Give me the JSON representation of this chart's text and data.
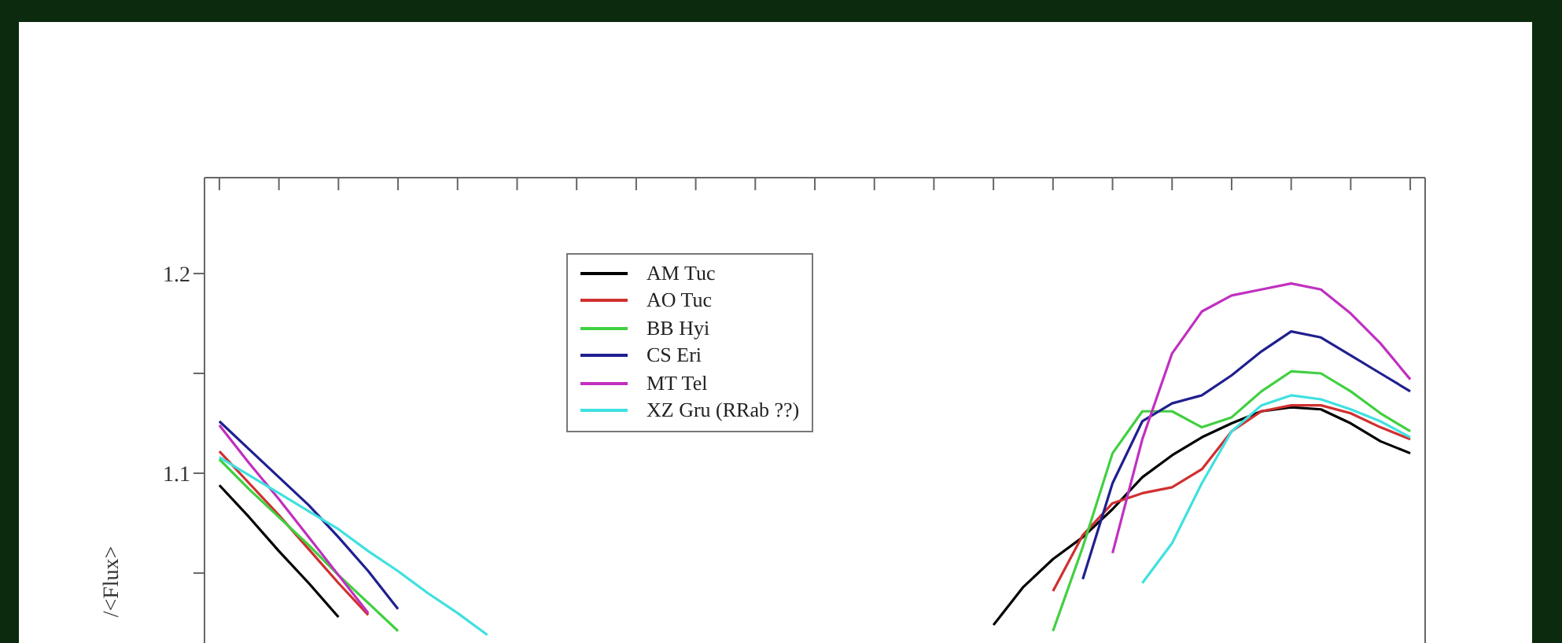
{
  "chart_data": {
    "type": "line",
    "ylabel": "/<Flux>",
    "categories": [
      null,
      null,
      null,
      null,
      null,
      null,
      null,
      null,
      null,
      null,
      null,
      null,
      null,
      null,
      null,
      null,
      null,
      null,
      null,
      null,
      null,
      null,
      null,
      null,
      null,
      null,
      null,
      null,
      null,
      null,
      null,
      null,
      null,
      null,
      null,
      null,
      null,
      null,
      null,
      null,
      null
    ],
    "series": [
      {
        "name": "AM Tuc",
        "color": "#000000",
        "values": [
          1.094,
          1.078,
          1.061,
          1.045,
          1.028,
          null,
          null,
          null,
          null,
          null,
          null,
          null,
          null,
          null,
          null,
          null,
          null,
          null,
          null,
          null,
          null,
          null,
          null,
          null,
          null,
          null,
          1.024,
          1.043,
          1.057,
          1.068,
          1.082,
          1.098,
          1.109,
          1.118,
          1.125,
          1.131,
          1.133,
          1.132,
          1.125,
          1.116,
          1.11
        ]
      },
      {
        "name": "AO Tuc",
        "color": "#d03030",
        "values": [
          1.111,
          1.095,
          1.079,
          1.062,
          1.045,
          1.029,
          null,
          null,
          null,
          null,
          null,
          null,
          null,
          null,
          null,
          null,
          null,
          null,
          null,
          null,
          null,
          null,
          null,
          null,
          null,
          null,
          null,
          null,
          1.041,
          1.069,
          1.085,
          1.09,
          1.093,
          1.102,
          1.121,
          1.131,
          1.134,
          1.134,
          1.13,
          1.123,
          1.117
        ]
      },
      {
        "name": "BB Hyi",
        "color": "#40d040",
        "values": [
          1.107,
          1.092,
          1.078,
          1.064,
          1.049,
          1.035,
          1.021,
          null,
          null,
          null,
          null,
          null,
          null,
          null,
          null,
          null,
          null,
          null,
          null,
          null,
          null,
          null,
          null,
          null,
          null,
          null,
          null,
          null,
          1.021,
          1.063,
          1.11,
          1.131,
          1.131,
          1.123,
          1.128,
          1.141,
          1.151,
          1.15,
          1.141,
          1.13,
          1.121
        ]
      },
      {
        "name": "CS Eri",
        "color": "#202090",
        "values": [
          1.126,
          1.112,
          1.098,
          1.084,
          1.068,
          1.051,
          1.032,
          null,
          null,
          null,
          null,
          null,
          null,
          null,
          null,
          null,
          null,
          null,
          null,
          null,
          null,
          null,
          null,
          null,
          null,
          null,
          null,
          null,
          null,
          1.047,
          1.095,
          1.126,
          1.135,
          1.139,
          1.149,
          1.161,
          1.171,
          1.168,
          1.159,
          1.15,
          1.141
        ]
      },
      {
        "name": "MT Tel",
        "color": "#c030c0",
        "values": [
          1.124,
          1.105,
          1.087,
          1.068,
          1.049,
          1.03,
          null,
          null,
          null,
          null,
          null,
          null,
          null,
          null,
          null,
          null,
          null,
          null,
          null,
          null,
          null,
          null,
          null,
          null,
          null,
          null,
          null,
          null,
          null,
          null,
          1.06,
          1.117,
          1.16,
          1.181,
          1.189,
          1.192,
          1.195,
          1.192,
          1.18,
          1.165,
          1.147
        ]
      },
      {
        "name": "XZ Gru (RRab ??)",
        "color": "#40e0e0",
        "values": [
          1.108,
          1.099,
          1.09,
          1.081,
          1.072,
          1.061,
          1.051,
          1.04,
          1.03,
          1.019,
          null,
          null,
          null,
          null,
          null,
          null,
          null,
          null,
          null,
          null,
          null,
          null,
          null,
          null,
          null,
          null,
          null,
          null,
          null,
          null,
          null,
          1.045,
          1.065,
          1.095,
          1.121,
          1.134,
          1.139,
          1.137,
          1.132,
          1.126,
          1.118
        ]
      }
    ],
    "ylim": [
      1.015,
      1.248
    ],
    "yticks": [
      {
        "value": 1.05,
        "label": null
      },
      1.1,
      {
        "value": 1.15,
        "label": null
      },
      1.2
    ],
    "tick_labels": "y",
    "legend": "top left",
    "grid": false,
    "marker": "none",
    "line_style": "solid"
  }
}
